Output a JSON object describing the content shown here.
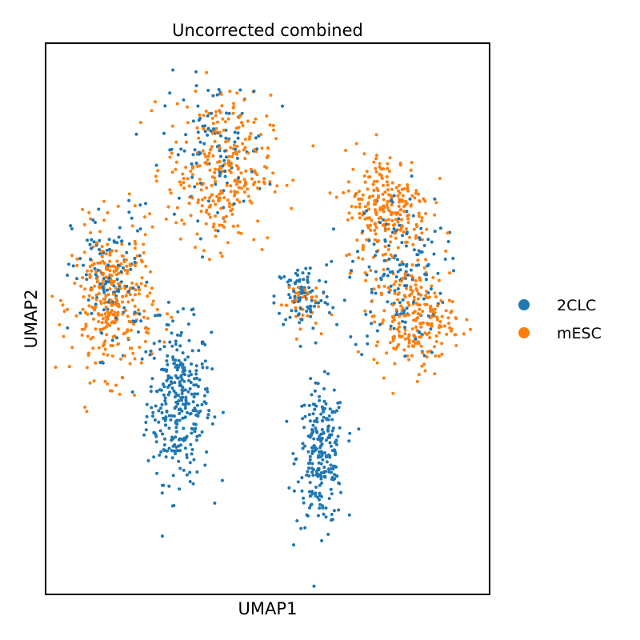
{
  "chart_data": {
    "type": "scatter",
    "title": "Uncorrected combined",
    "xlabel": "UMAP1",
    "ylabel": "UMAP2",
    "xlim": [
      0,
      100
    ],
    "ylim": [
      0,
      100
    ],
    "grid": false,
    "legend_position": "right",
    "series": [
      {
        "name": "2CLC",
        "color": "#1f77b4",
        "clusters": [
          {
            "cx": 30,
            "cy": 35,
            "rx": 8,
            "ry": 16,
            "n": 320
          },
          {
            "cx": 62,
            "cy": 25,
            "rx": 6,
            "ry": 14,
            "n": 250
          },
          {
            "cx": 58,
            "cy": 54,
            "rx": 7,
            "ry": 7,
            "n": 90
          },
          {
            "cx": 79,
            "cy": 58,
            "rx": 12,
            "ry": 17,
            "n": 160
          },
          {
            "cx": 15,
            "cy": 57,
            "rx": 10,
            "ry": 15,
            "n": 120
          },
          {
            "cx": 38,
            "cy": 81,
            "rx": 13,
            "ry": 14,
            "n": 110
          }
        ]
      },
      {
        "name": "mESC",
        "color": "#ff7f0e",
        "clusters": [
          {
            "cx": 15,
            "cy": 53,
            "rx": 10,
            "ry": 15,
            "n": 330
          },
          {
            "cx": 39,
            "cy": 77,
            "rx": 13,
            "ry": 15,
            "n": 300
          },
          {
            "cx": 77,
            "cy": 70,
            "rx": 11,
            "ry": 12,
            "n": 260
          },
          {
            "cx": 83,
            "cy": 50,
            "rx": 10,
            "ry": 10,
            "n": 230
          },
          {
            "cx": 57,
            "cy": 53,
            "rx": 5,
            "ry": 5,
            "n": 40
          }
        ]
      }
    ]
  }
}
